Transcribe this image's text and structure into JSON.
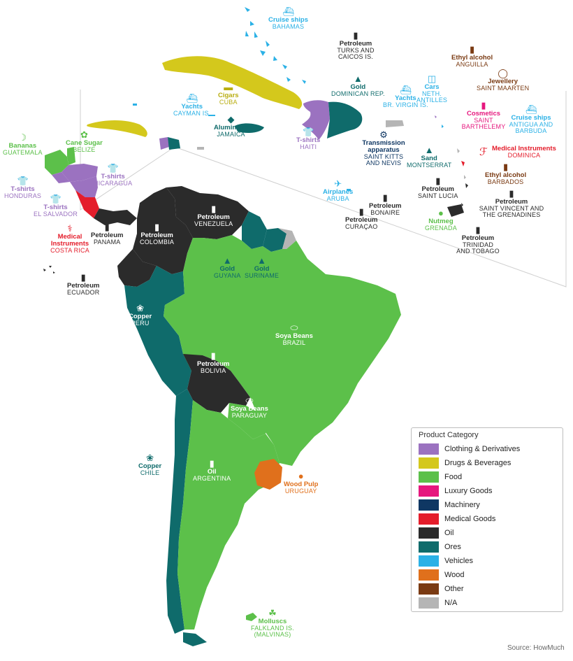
{
  "colors": {
    "clothing": "#9b72c0",
    "drugs": "#d4c81c",
    "food": "#5cc04a",
    "luxury": "#e6177e",
    "machinery": "#0f3763",
    "medical": "#e41d2b",
    "oil": "#2b2b2b",
    "ores": "#0f6b6b",
    "vehicles": "#2bb1e6",
    "wood": "#e0701c",
    "other": "#7a3a12",
    "na": "#b5b5b5"
  },
  "legend": {
    "title": "Product Category",
    "items": [
      {
        "label": "Clothing & Derivatives",
        "color": "#9b72c0"
      },
      {
        "label": "Drugs & Beverages",
        "color": "#d4c81c"
      },
      {
        "label": "Food",
        "color": "#5cc04a"
      },
      {
        "label": "Luxury Goods",
        "color": "#e6177e"
      },
      {
        "label": "Machinery",
        "color": "#0f3763"
      },
      {
        "label": "Medical Goods",
        "color": "#e41d2b"
      },
      {
        "label": "Oil",
        "color": "#2b2b2b"
      },
      {
        "label": "Ores",
        "color": "#0f6b6b"
      },
      {
        "label": "Vehicles",
        "color": "#2bb1e6"
      },
      {
        "label": "Wood",
        "color": "#e0701c"
      },
      {
        "label": "Other",
        "color": "#7a3a12"
      },
      {
        "label": "N/A",
        "color": "#b5b5b5"
      }
    ]
  },
  "labels": [
    {
      "id": "bahamas",
      "product": "Cruise ships",
      "country": "BAHAMAS",
      "cat": "vehicles",
      "icon": "ship-icon"
    },
    {
      "id": "turks",
      "product": "Petroleum",
      "country": "TURKS AND CAICOS IS.",
      "cat": "oil",
      "icon": "oil-barrel-icon"
    },
    {
      "id": "cuba",
      "product": "Cigars",
      "country": "CUBA",
      "cat": "drugs",
      "icon": "cigar-icon"
    },
    {
      "id": "cayman",
      "product": "Yachts",
      "country": "CAYMAN IS.",
      "cat": "vehicles",
      "icon": "yacht-icon"
    },
    {
      "id": "jamaica",
      "product": "Aluminium",
      "country": "JAMAICA",
      "cat": "ores",
      "icon": "aluminium-icon"
    },
    {
      "id": "dominican",
      "product": "Gold",
      "country": "DOMINICAN REP.",
      "cat": "ores",
      "icon": "gold-bar-icon"
    },
    {
      "id": "haiti",
      "product": "T-shirts",
      "country": "HAITI",
      "cat": "clothing",
      "icon": "tshirt-icon"
    },
    {
      "id": "bvi",
      "product": "Yachts",
      "country": "BR. VIRGIN IS.",
      "cat": "vehicles",
      "icon": "yacht-icon"
    },
    {
      "id": "antilles",
      "product": "Cars",
      "country": "NETH. ANTILLES",
      "cat": "vehicles",
      "icon": "car-icon"
    },
    {
      "id": "anguilla",
      "product": "Ethyl alcohol",
      "country": "ANGUILLA",
      "cat": "other",
      "icon": "bottle-icon"
    },
    {
      "id": "stmaarten",
      "product": "Jewellery",
      "country": "SAINT MAARTEN",
      "cat": "other",
      "icon": "ring-icon"
    },
    {
      "id": "stbarth",
      "product": "Cosmetics",
      "country": "SAINT BARTHELEMY",
      "cat": "luxury",
      "icon": "lipstick-icon"
    },
    {
      "id": "antigua",
      "product": "Cruise ships",
      "country": "ANTIGUA AND BARBUDA",
      "cat": "vehicles",
      "icon": "ship-icon"
    },
    {
      "id": "stkitts",
      "product": "Transmission apparatus",
      "country": "SAINT KITTS AND NEVIS",
      "cat": "machinery",
      "icon": "gears-icon"
    },
    {
      "id": "montserrat",
      "product": "Sand",
      "country": "MONTSERRAT",
      "cat": "ores",
      "icon": "sand-icon"
    },
    {
      "id": "dominica",
      "product": "Medical Instruments",
      "country": "DOMINICA",
      "cat": "medical",
      "icon": "stethoscope-icon"
    },
    {
      "id": "barbados",
      "product": "Ethyl alcohol",
      "country": "BARBADOS",
      "cat": "other",
      "icon": "bottle-icon"
    },
    {
      "id": "aruba",
      "product": "Airplanes",
      "country": "ARUBA",
      "cat": "vehicles",
      "icon": "airplane-icon"
    },
    {
      "id": "bonaire",
      "product": "Petroleum",
      "country": "BONAIRE",
      "cat": "oil",
      "icon": "oil-barrel-icon"
    },
    {
      "id": "curacao",
      "product": "Petroleum",
      "country": "CURAÇAO",
      "cat": "oil",
      "icon": "oil-barrel-icon"
    },
    {
      "id": "stlucia",
      "product": "Petroleum",
      "country": "SAINT LUCIA",
      "cat": "oil",
      "icon": "oil-barrel-icon"
    },
    {
      "id": "stvincent",
      "product": "Petroleum",
      "country": "SAINT VINCENT AND THE GRENADINES",
      "cat": "oil",
      "icon": "oil-barrel-icon"
    },
    {
      "id": "grenada",
      "product": "Nutmeg",
      "country": "GRENADA",
      "cat": "food",
      "icon": "nutmeg-icon"
    },
    {
      "id": "trinidad",
      "product": "Petroleum",
      "country": "TRINIDAD AND TOBAGO",
      "cat": "oil",
      "icon": "oil-barrel-icon"
    },
    {
      "id": "guatemala",
      "product": "Bananas",
      "country": "GUATEMALA",
      "cat": "food",
      "icon": "banana-icon"
    },
    {
      "id": "belize",
      "product": "Cane Sugar",
      "country": "BELIZE",
      "cat": "food",
      "icon": "sugar-cane-icon"
    },
    {
      "id": "honduras",
      "product": "T-shirts",
      "country": "HONDURAS",
      "cat": "clothing",
      "icon": "tshirt-icon"
    },
    {
      "id": "nicaragua",
      "product": "T-shirts",
      "country": "NICARAGUA",
      "cat": "clothing",
      "icon": "tshirt-icon"
    },
    {
      "id": "elsalvador",
      "product": "T-shirts",
      "country": "EL SALVADOR",
      "cat": "clothing",
      "icon": "tshirt-icon"
    },
    {
      "id": "costarica",
      "product": "Medical Instruments",
      "country": "COSTA RICA",
      "cat": "medical",
      "icon": "stethoscope-icon"
    },
    {
      "id": "panama",
      "product": "Petroleum",
      "country": "PANAMA",
      "cat": "oil",
      "icon": "oil-barrel-icon"
    },
    {
      "id": "ecuador",
      "product": "Petroleum",
      "country": "ECUADOR",
      "cat": "oil",
      "icon": "oil-barrel-icon"
    },
    {
      "id": "colombia",
      "product": "Petroleum",
      "country": "COLOMBIA",
      "cat": "oil",
      "icon": "oil-barrel-icon"
    },
    {
      "id": "venezuela",
      "product": "Petroleum",
      "country": "VENEZUELA",
      "cat": "oil",
      "icon": "oil-barrel-icon"
    },
    {
      "id": "guyana",
      "product": "Gold",
      "country": "GUYANA",
      "cat": "ores",
      "icon": "gold-bar-icon"
    },
    {
      "id": "suriname",
      "product": "Gold",
      "country": "SURINAME",
      "cat": "ores",
      "icon": "gold-bar-icon"
    },
    {
      "id": "peru",
      "product": "Copper",
      "country": "PERU",
      "cat": "ores",
      "icon": "copper-icon"
    },
    {
      "id": "brazil",
      "product": "Soya Beans",
      "country": "BRAZIL",
      "cat": "food",
      "icon": "soybean-icon"
    },
    {
      "id": "bolivia",
      "product": "Petroleum",
      "country": "BOLIVIA",
      "cat": "oil",
      "icon": "oil-barrel-icon"
    },
    {
      "id": "paraguay",
      "product": "Soya Beans",
      "country": "PARAGUAY",
      "cat": "food",
      "icon": "soybean-icon"
    },
    {
      "id": "chile",
      "product": "Copper",
      "country": "CHILE",
      "cat": "ores",
      "icon": "copper-icon"
    },
    {
      "id": "argentina",
      "product": "Oil",
      "country": "ARGENTINA",
      "cat": "food",
      "icon": "oil-bottle-icon"
    },
    {
      "id": "uruguay",
      "product": "Wood Pulp",
      "country": "URUGUAY",
      "cat": "wood",
      "icon": "logs-icon"
    },
    {
      "id": "falkland",
      "product": "Molluscs",
      "country": "FALKLAND IS. (MALVINAS)",
      "cat": "food",
      "icon": "octopus-icon"
    }
  ],
  "source": "Source: HowMuch"
}
